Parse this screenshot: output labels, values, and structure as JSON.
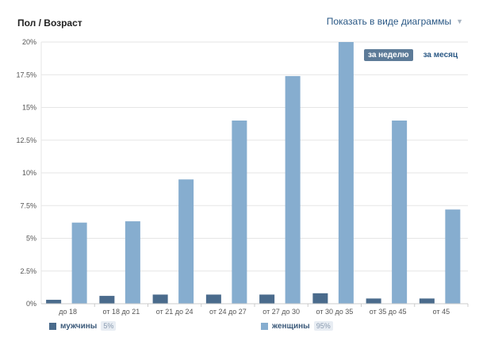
{
  "header": {
    "title": "Пол / Возраст",
    "view_switch_label": "Показать в виде диаграммы"
  },
  "period_tabs": [
    {
      "label": "за неделю",
      "active": true
    },
    {
      "label": "за месяц",
      "active": false
    }
  ],
  "legend": {
    "men_label": "мужчины",
    "men_pct": "5%",
    "women_label": "женщины",
    "women_pct": "95%"
  },
  "colors": {
    "men": "#4a6b8c",
    "women": "#86adcf",
    "grid": "#e6e6e6",
    "axis_text": "#555555"
  },
  "chart_data": {
    "type": "bar",
    "title": "Пол / Возраст",
    "categories": [
      "до 18",
      "от 18 до 21",
      "от 21 до 24",
      "от 24 до 27",
      "от 27 до 30",
      "от 30 до 35",
      "от 35 до 45",
      "от 45"
    ],
    "series": [
      {
        "name": "мужчины",
        "values": [
          0.3,
          0.6,
          0.7,
          0.7,
          0.7,
          0.8,
          0.4,
          0.4
        ]
      },
      {
        "name": "женщины",
        "values": [
          6.2,
          6.3,
          9.5,
          14.0,
          17.4,
          20.0,
          14.0,
          7.2
        ]
      }
    ],
    "ylim": [
      0,
      20
    ],
    "yticks": [
      "0%",
      "2.5%",
      "5%",
      "7.5%",
      "10%",
      "12.5%",
      "15%",
      "17.5%",
      "20%"
    ],
    "ytick_values": [
      0,
      2.5,
      5,
      7.5,
      10,
      12.5,
      15,
      17.5,
      20
    ],
    "grid": true,
    "legend_position": "bottom"
  }
}
